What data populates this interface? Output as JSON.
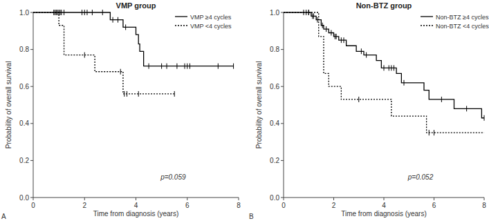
{
  "chart_data": [
    {
      "type": "line",
      "title": "VMP group",
      "panel_label": "A",
      "x_label": "Time from diagnosis (years)",
      "y_label": "Probability of overall survival",
      "annotations": [
        "p=0.059"
      ],
      "xlim": [
        0,
        8
      ],
      "xticks": [
        0,
        2,
        4,
        6,
        8
      ],
      "ylim": [
        0,
        1
      ],
      "yticks": [
        {
          "value": 0,
          "label": "0.0"
        },
        {
          "value": 0.2,
          "label": "0.2"
        },
        {
          "value": 0.4,
          "label": "0.4"
        },
        {
          "value": 0.6,
          "label": "0.6"
        },
        {
          "value": 0.8,
          "label": "0.8"
        },
        {
          "value": 1,
          "label": "1.0"
        }
      ],
      "grid": false,
      "legend": "upper right",
      "series": [
        {
          "name": "VMP ≥4 cycles",
          "color": "#000000",
          "line_style": "solid",
          "x": [
            0,
            3.0,
            3.5,
            4.0,
            4.1,
            4.15,
            4.3,
            7.8
          ],
          "values": [
            1,
            0.96,
            0.92,
            0.88,
            0.83,
            0.79,
            0.71,
            0.71
          ],
          "censored": [
            0.8,
            0.85,
            0.9,
            0.95,
            1.0,
            1.05,
            1.1,
            1.2,
            1.9,
            2.0,
            2.1,
            2.3,
            2.7,
            3.1,
            3.3,
            3.6,
            4.5,
            5.0,
            5.2,
            5.6,
            5.9,
            6.0,
            6.1,
            7.2,
            7.8
          ]
        },
        {
          "name": "VMP <4 cycles",
          "color": "#000000",
          "line_style": "dotted",
          "x": [
            0,
            1.0,
            1.2,
            2.4,
            3.5,
            5.5
          ],
          "values": [
            1,
            0.93,
            0.77,
            0.68,
            0.56,
            0.56
          ],
          "censored": [
            0.85,
            2.0,
            3.4,
            3.55,
            3.65,
            4.1,
            5.5
          ]
        }
      ]
    },
    {
      "type": "line",
      "title": "Non-BTZ group",
      "panel_label": "B",
      "x_label": "Time from diagnosis (years)",
      "y_label": "Probability of overall survival",
      "annotations": [
        "p=0.052"
      ],
      "xlim": [
        0,
        8
      ],
      "xticks": [
        0,
        2,
        4,
        6,
        8
      ],
      "ylim": [
        0,
        1
      ],
      "yticks": [
        {
          "value": 0,
          "label": "0.0"
        },
        {
          "value": 0.2,
          "label": "0.2"
        },
        {
          "value": 0.4,
          "label": "0.4"
        },
        {
          "value": 0.6,
          "label": "0.6"
        },
        {
          "value": 0.8,
          "label": "0.8"
        },
        {
          "value": 1,
          "label": "1.0"
        }
      ],
      "grid": false,
      "legend": "upper right",
      "series": [
        {
          "name": "Non-BTZ ≥4 cycles",
          "color": "#000000",
          "line_style": "solid",
          "x": [
            0,
            1.1,
            1.3,
            1.5,
            1.6,
            1.8,
            2.0,
            2.2,
            2.5,
            2.9,
            3.2,
            3.7,
            3.9,
            4.5,
            4.7,
            5.6,
            5.8,
            6.8,
            7.9,
            8.0
          ],
          "values": [
            1,
            0.98,
            0.96,
            0.93,
            0.91,
            0.89,
            0.87,
            0.85,
            0.82,
            0.79,
            0.77,
            0.74,
            0.7,
            0.67,
            0.62,
            0.58,
            0.53,
            0.48,
            0.43,
            0.43
          ],
          "censored": [
            0.8,
            0.9,
            1.0,
            1.15,
            1.2,
            1.35,
            1.55,
            1.7,
            1.9,
            2.05,
            2.1,
            2.3,
            2.4,
            3.1,
            3.3,
            4.0,
            4.2,
            4.3,
            4.4,
            4.8,
            6.3,
            7.3,
            8.0
          ]
        },
        {
          "name": "Non-BTZ <4 cycles",
          "color": "#000000",
          "line_style": "dotted",
          "x": [
            0,
            1.4,
            1.6,
            1.8,
            2.3,
            4.3,
            5.7,
            8.0
          ],
          "values": [
            1,
            0.87,
            0.67,
            0.6,
            0.53,
            0.44,
            0.35,
            0.35
          ],
          "censored": [
            1.0,
            3.0,
            5.8,
            6.0
          ]
        }
      ]
    }
  ]
}
